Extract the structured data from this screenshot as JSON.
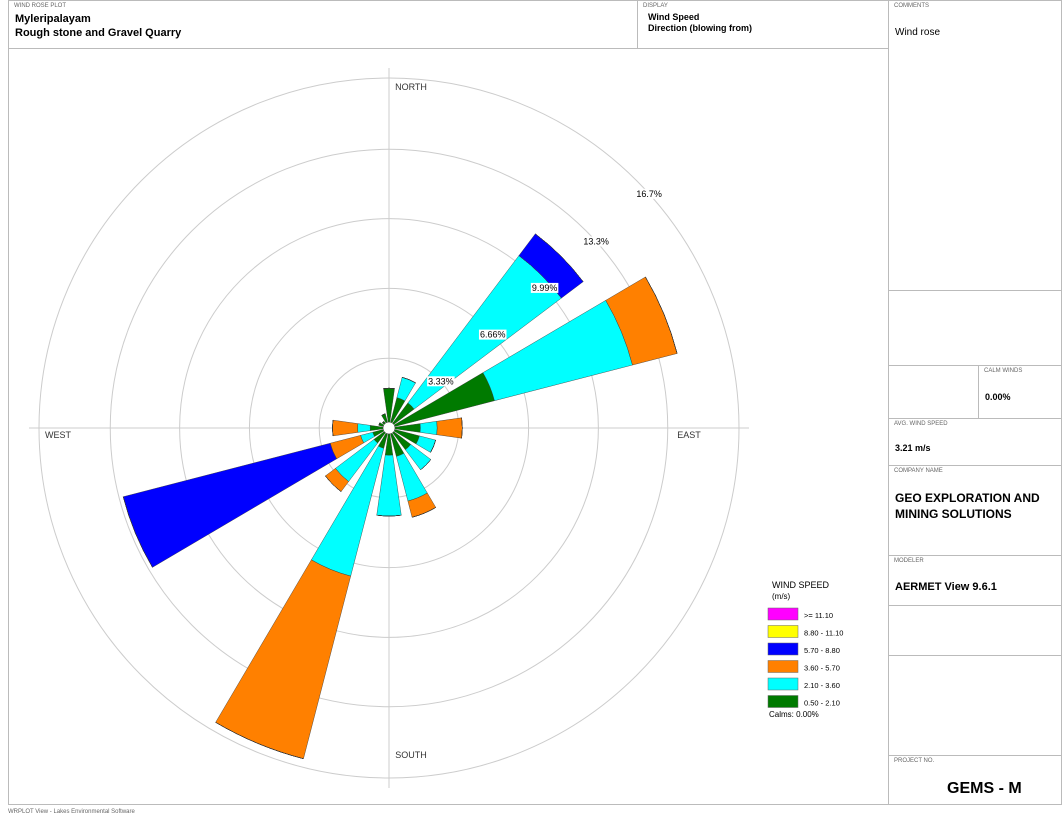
{
  "header": {
    "plot_label": "WIND ROSE PLOT",
    "site": "Myleripalayam",
    "title": "Rough stone and Gravel Quarry"
  },
  "display": {
    "label": "DISPLAY",
    "line1": "Wind Speed",
    "line2": "Direction (blowing from)"
  },
  "panel": {
    "comments_label": "COMMENTS",
    "comments": "Wind rose",
    "calm_label": "CALM WINDS",
    "calm_value": "0.00%",
    "avg_label": "AVG. WIND SPEED",
    "avg_value": "3.21 m/s",
    "company_label": "COMPANY NAME",
    "company": "GEO EXPLORATION AND MINING SOLUTIONS",
    "modeler_label": "MODELER",
    "modeler": "AERMET View 9.6.1",
    "project_label": "PROJECT NO.",
    "project": "GEMS - M"
  },
  "footer": "WRPLOT View - Lakes Environmental Software",
  "chart_data": {
    "type": "windrose",
    "compass_labels": [
      "NORTH",
      "EAST",
      "SOUTH",
      "WEST"
    ],
    "x": [
      0,
      22.5,
      45,
      67.5,
      90,
      112.5,
      135,
      157.5,
      180,
      202.5,
      225,
      247.5,
      270,
      292.5,
      315,
      337.5
    ],
    "series": [
      {
        "name": "0.50 - 2.10",
        "color": "#007a00",
        "values": [
          1.9,
          1.5,
          1.5,
          5.2,
          1.5,
          1.5,
          1.3,
          1.4,
          1.3,
          1.0,
          0.9,
          0.8,
          0.9,
          0.5,
          0.4,
          0.7
        ]
      },
      {
        "name": "2.10 - 3.60",
        "color": "#00ffff",
        "values": [
          0,
          1.0,
          8.8,
          6.8,
          0.8,
          0.8,
          1.2,
          2.2,
          2.9,
          6.3,
          2.3,
          0.6,
          0.6,
          0,
          0,
          0
        ]
      },
      {
        "name": "3.60 - 5.70",
        "color": "#ff8000",
        "values": [
          0,
          0,
          0,
          2.2,
          1.2,
          0,
          0,
          0.8,
          0,
          9.0,
          0.6,
          1.5,
          1.2,
          0,
          0,
          0
        ]
      },
      {
        "name": "5.70 - 8.80",
        "color": "#0000ff",
        "values": [
          0,
          0,
          1.3,
          0,
          0,
          0,
          0,
          0,
          0,
          0,
          0,
          10.2,
          0,
          0,
          0,
          0
        ]
      },
      {
        "name": "8.80 - 11.10",
        "color": "#ffff00",
        "values": [
          0,
          0,
          0,
          0,
          0,
          0,
          0,
          0,
          0,
          0,
          0,
          0,
          0,
          0,
          0,
          0
        ]
      },
      {
        "name": ">= 11.10",
        "color": "#ff00ff",
        "values": [
          0,
          0,
          0,
          0,
          0,
          0,
          0,
          0,
          0,
          0,
          0,
          0,
          0,
          0,
          0,
          0
        ]
      }
    ],
    "rlim": [
      0,
      16.7
    ],
    "rticks": [
      {
        "value": 3.33,
        "label": "3.33%"
      },
      {
        "value": 6.66,
        "label": "6.66%"
      },
      {
        "value": 9.99,
        "label": "9.99%"
      },
      {
        "value": 13.3,
        "label": "13.3%"
      },
      {
        "value": 16.7,
        "label": "16.7%"
      }
    ],
    "legend_title": "WIND SPEED",
    "legend_unit": "(m/s)",
    "calms": "Calms: 0.00%"
  }
}
